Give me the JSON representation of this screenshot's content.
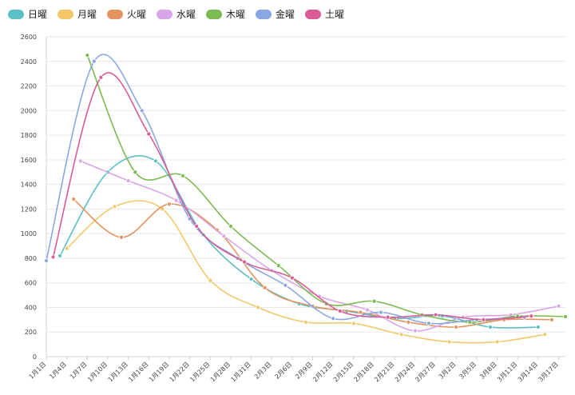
{
  "chart_data": {
    "type": "line",
    "title": "",
    "xlabel": "",
    "ylabel": "",
    "ylim": [
      0,
      2600
    ],
    "x_tick_labels": [
      "1月1日",
      "1月4日",
      "1月7日",
      "1月10日",
      "1月13日",
      "1月16日",
      "1月19日",
      "1月22日",
      "1月25日",
      "1月28日",
      "1月31日",
      "2月3日",
      "2月6日",
      "2月9日",
      "2月12日",
      "2月15日",
      "2月18日",
      "2月21日",
      "2月24日",
      "2月27日",
      "3月2日",
      "3月5日",
      "3月8日",
      "3月11日",
      "3月14日",
      "3月17日"
    ],
    "y_ticks": [
      0,
      200,
      400,
      600,
      800,
      1000,
      1200,
      1400,
      1600,
      1800,
      2000,
      2200,
      2400,
      2600
    ],
    "y_tick_labels": [
      "0",
      "200",
      "400",
      "600",
      "800",
      "1000",
      "1200",
      "1400",
      "1600",
      "1800",
      "2000",
      "2200",
      "2400",
      "2600"
    ],
    "legend_position": "top-left",
    "grid": true,
    "series": [
      {
        "name": "日曜",
        "color": "#5bc0c7",
        "points": [
          [
            2,
            820
          ],
          [
            9,
            1500
          ],
          [
            16,
            1590
          ],
          [
            23,
            990
          ],
          [
            30,
            630
          ],
          [
            37,
            430
          ],
          [
            44,
            370
          ],
          [
            51,
            310
          ],
          [
            58,
            330
          ],
          [
            65,
            240
          ],
          [
            72,
            240
          ]
        ]
      },
      {
        "name": "月曜",
        "color": "#f2c86a",
        "points": [
          [
            3,
            880
          ],
          [
            10,
            1220
          ],
          [
            17,
            1200
          ],
          [
            24,
            620
          ],
          [
            31,
            400
          ],
          [
            38,
            280
          ],
          [
            45,
            270
          ],
          [
            52,
            180
          ],
          [
            59,
            120
          ],
          [
            66,
            120
          ],
          [
            73,
            180
          ]
        ]
      },
      {
        "name": "火曜",
        "color": "#e39460",
        "points": [
          [
            4,
            1280
          ],
          [
            11,
            970
          ],
          [
            18,
            1240
          ],
          [
            25,
            1030
          ],
          [
            32,
            560
          ],
          [
            39,
            410
          ],
          [
            46,
            360
          ],
          [
            53,
            280
          ],
          [
            60,
            240
          ],
          [
            67,
            300
          ],
          [
            74,
            300
          ]
        ]
      },
      {
        "name": "水曜",
        "color": "#d8a6e8",
        "points": [
          [
            5,
            1590
          ],
          [
            12,
            1430
          ],
          [
            19,
            1270
          ],
          [
            26,
            980
          ],
          [
            33,
            700
          ],
          [
            40,
            490
          ],
          [
            47,
            380
          ],
          [
            54,
            210
          ],
          [
            61,
            320
          ],
          [
            68,
            340
          ],
          [
            75,
            410
          ]
        ]
      },
      {
        "name": "木曜",
        "color": "#7cba52",
        "points": [
          [
            6,
            2450
          ],
          [
            13,
            1500
          ],
          [
            20,
            1470
          ],
          [
            27,
            1060
          ],
          [
            34,
            740
          ],
          [
            41,
            430
          ],
          [
            48,
            450
          ],
          [
            55,
            340
          ],
          [
            62,
            280
          ],
          [
            69,
            330
          ],
          [
            76,
            325
          ]
        ]
      },
      {
        "name": "金曜",
        "color": "#8aa8e0",
        "points": [
          [
            0,
            780
          ],
          [
            7,
            2400
          ],
          [
            14,
            2000
          ],
          [
            21,
            1120
          ],
          [
            28,
            800
          ],
          [
            35,
            580
          ],
          [
            42,
            310
          ],
          [
            49,
            360
          ],
          [
            56,
            270
          ],
          [
            63,
            300
          ],
          [
            70,
            320
          ]
        ]
      },
      {
        "name": "土曜",
        "color": "#d95c96",
        "points": [
          [
            1,
            810
          ],
          [
            8,
            2270
          ],
          [
            15,
            1810
          ],
          [
            22,
            1060
          ],
          [
            29,
            770
          ],
          [
            36,
            640
          ],
          [
            43,
            370
          ],
          [
            50,
            320
          ],
          [
            57,
            340
          ],
          [
            64,
            300
          ],
          [
            71,
            330
          ]
        ]
      }
    ]
  }
}
